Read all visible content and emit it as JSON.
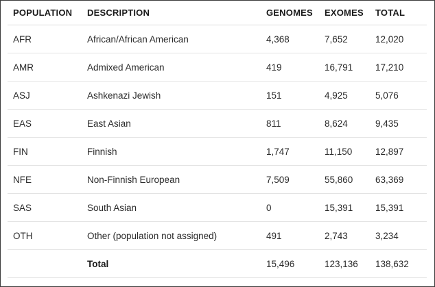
{
  "table": {
    "headers": [
      "POPULATION",
      "DESCRIPTION",
      "GENOMES",
      "EXOMES",
      "TOTAL"
    ],
    "rows": [
      {
        "population": "AFR",
        "description": "African/African American",
        "genomes": "4,368",
        "exomes": "7,652",
        "total": "12,020"
      },
      {
        "population": "AMR",
        "description": "Admixed American",
        "genomes": "419",
        "exomes": "16,791",
        "total": "17,210"
      },
      {
        "population": "ASJ",
        "description": "Ashkenazi Jewish",
        "genomes": "151",
        "exomes": "4,925",
        "total": "5,076"
      },
      {
        "population": "EAS",
        "description": "East Asian",
        "genomes": "811",
        "exomes": "8,624",
        "total": "9,435"
      },
      {
        "population": "FIN",
        "description": "Finnish",
        "genomes": "1,747",
        "exomes": "11,150",
        "total": "12,897"
      },
      {
        "population": "NFE",
        "description": "Non-Finnish European",
        "genomes": "7,509",
        "exomes": "55,860",
        "total": "63,369"
      },
      {
        "population": "SAS",
        "description": "South Asian",
        "genomes": "0",
        "exomes": "15,391",
        "total": "15,391"
      },
      {
        "population": "OTH",
        "description": "Other (population not assigned)",
        "genomes": "491",
        "exomes": "2,743",
        "total": "3,234"
      },
      {
        "population": "",
        "description": "Total",
        "genomes": "15,496",
        "exomes": "123,136",
        "total": "138,632"
      }
    ]
  }
}
